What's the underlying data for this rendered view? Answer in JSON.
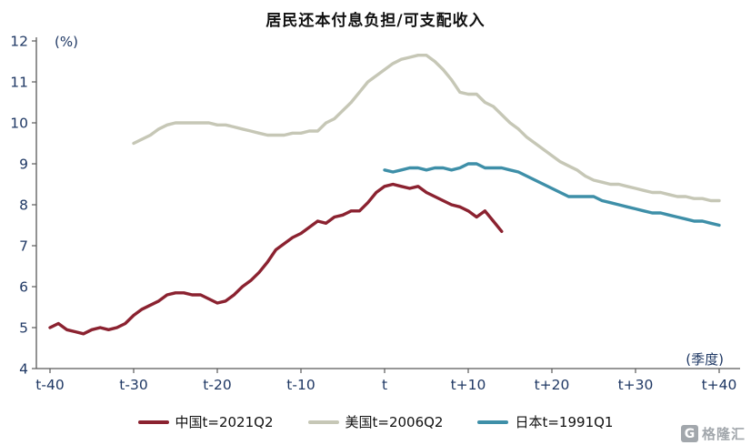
{
  "title": "居民还本付息负担/可支配收入",
  "watermark": {
    "logo_letter": "G",
    "text": "格隆汇"
  },
  "chart_data": {
    "type": "line",
    "title": "居民还本付息负担/可支配收入",
    "ylabel_unit": "(%)",
    "xlabel_unit": "(季度)",
    "ylim": [
      4,
      12
    ],
    "grid": false,
    "legend_position": "bottom",
    "axis_text_color": "#1F3864",
    "axis_line_color": "#595959",
    "y_ticks": [
      4,
      5,
      6,
      7,
      8,
      9,
      10,
      11,
      12
    ],
    "x_ticks": [
      {
        "v": -40,
        "label": "t-40"
      },
      {
        "v": -30,
        "label": "t-30"
      },
      {
        "v": -20,
        "label": "t-20"
      },
      {
        "v": -10,
        "label": "t-10"
      },
      {
        "v": 0,
        "label": "t"
      },
      {
        "v": 10,
        "label": "t+10"
      },
      {
        "v": 20,
        "label": "t+20"
      },
      {
        "v": 30,
        "label": "t+30"
      },
      {
        "v": 40,
        "label": "t+40"
      }
    ],
    "series": [
      {
        "id": "us",
        "name": "美国t=2006Q2",
        "color": "#C6C7B6",
        "x_start": -30,
        "values": [
          9.5,
          9.6,
          9.7,
          9.85,
          9.95,
          10.0,
          10.0,
          10.0,
          10.0,
          10.0,
          9.95,
          9.95,
          9.9,
          9.85,
          9.8,
          9.75,
          9.7,
          9.7,
          9.7,
          9.75,
          9.75,
          9.8,
          9.8,
          10.0,
          10.1,
          10.3,
          10.5,
          10.75,
          11.0,
          11.15,
          11.3,
          11.45,
          11.55,
          11.6,
          11.65,
          11.65,
          11.5,
          11.3,
          11.05,
          10.75,
          10.7,
          10.7,
          10.5,
          10.4,
          10.2,
          10.0,
          9.85,
          9.65,
          9.5,
          9.35,
          9.2,
          9.05,
          8.95,
          8.85,
          8.7,
          8.6,
          8.55,
          8.5,
          8.5,
          8.45,
          8.4,
          8.35,
          8.3,
          8.3,
          8.25,
          8.2,
          8.2,
          8.15,
          8.15,
          8.1,
          8.1
        ]
      },
      {
        "id": "japan",
        "name": "日本t=1991Q1",
        "color": "#3E8FA8",
        "x_start": 0,
        "values": [
          8.85,
          8.8,
          8.85,
          8.9,
          8.9,
          8.85,
          8.9,
          8.9,
          8.85,
          8.9,
          9.0,
          9.0,
          8.9,
          8.9,
          8.9,
          8.85,
          8.8,
          8.7,
          8.6,
          8.5,
          8.4,
          8.3,
          8.2,
          8.2,
          8.2,
          8.2,
          8.1,
          8.05,
          8.0,
          7.95,
          7.9,
          7.85,
          7.8,
          7.8,
          7.75,
          7.7,
          7.65,
          7.6,
          7.6,
          7.55,
          7.5
        ]
      },
      {
        "id": "china",
        "name": "中国t=2021Q2",
        "color": "#8B2230",
        "x_start": -40,
        "values": [
          5.0,
          5.1,
          4.95,
          4.9,
          4.85,
          4.95,
          5.0,
          4.95,
          5.0,
          5.1,
          5.3,
          5.45,
          5.55,
          5.65,
          5.8,
          5.85,
          5.85,
          5.8,
          5.8,
          5.7,
          5.6,
          5.65,
          5.8,
          6.0,
          6.15,
          6.35,
          6.6,
          6.9,
          7.05,
          7.2,
          7.3,
          7.45,
          7.6,
          7.55,
          7.7,
          7.75,
          7.85,
          7.85,
          8.05,
          8.3,
          8.45,
          8.5,
          8.45,
          8.4,
          8.45,
          8.3,
          8.2,
          8.1,
          8.0,
          7.95,
          7.85,
          7.7,
          7.85,
          7.6,
          7.35
        ]
      }
    ]
  }
}
